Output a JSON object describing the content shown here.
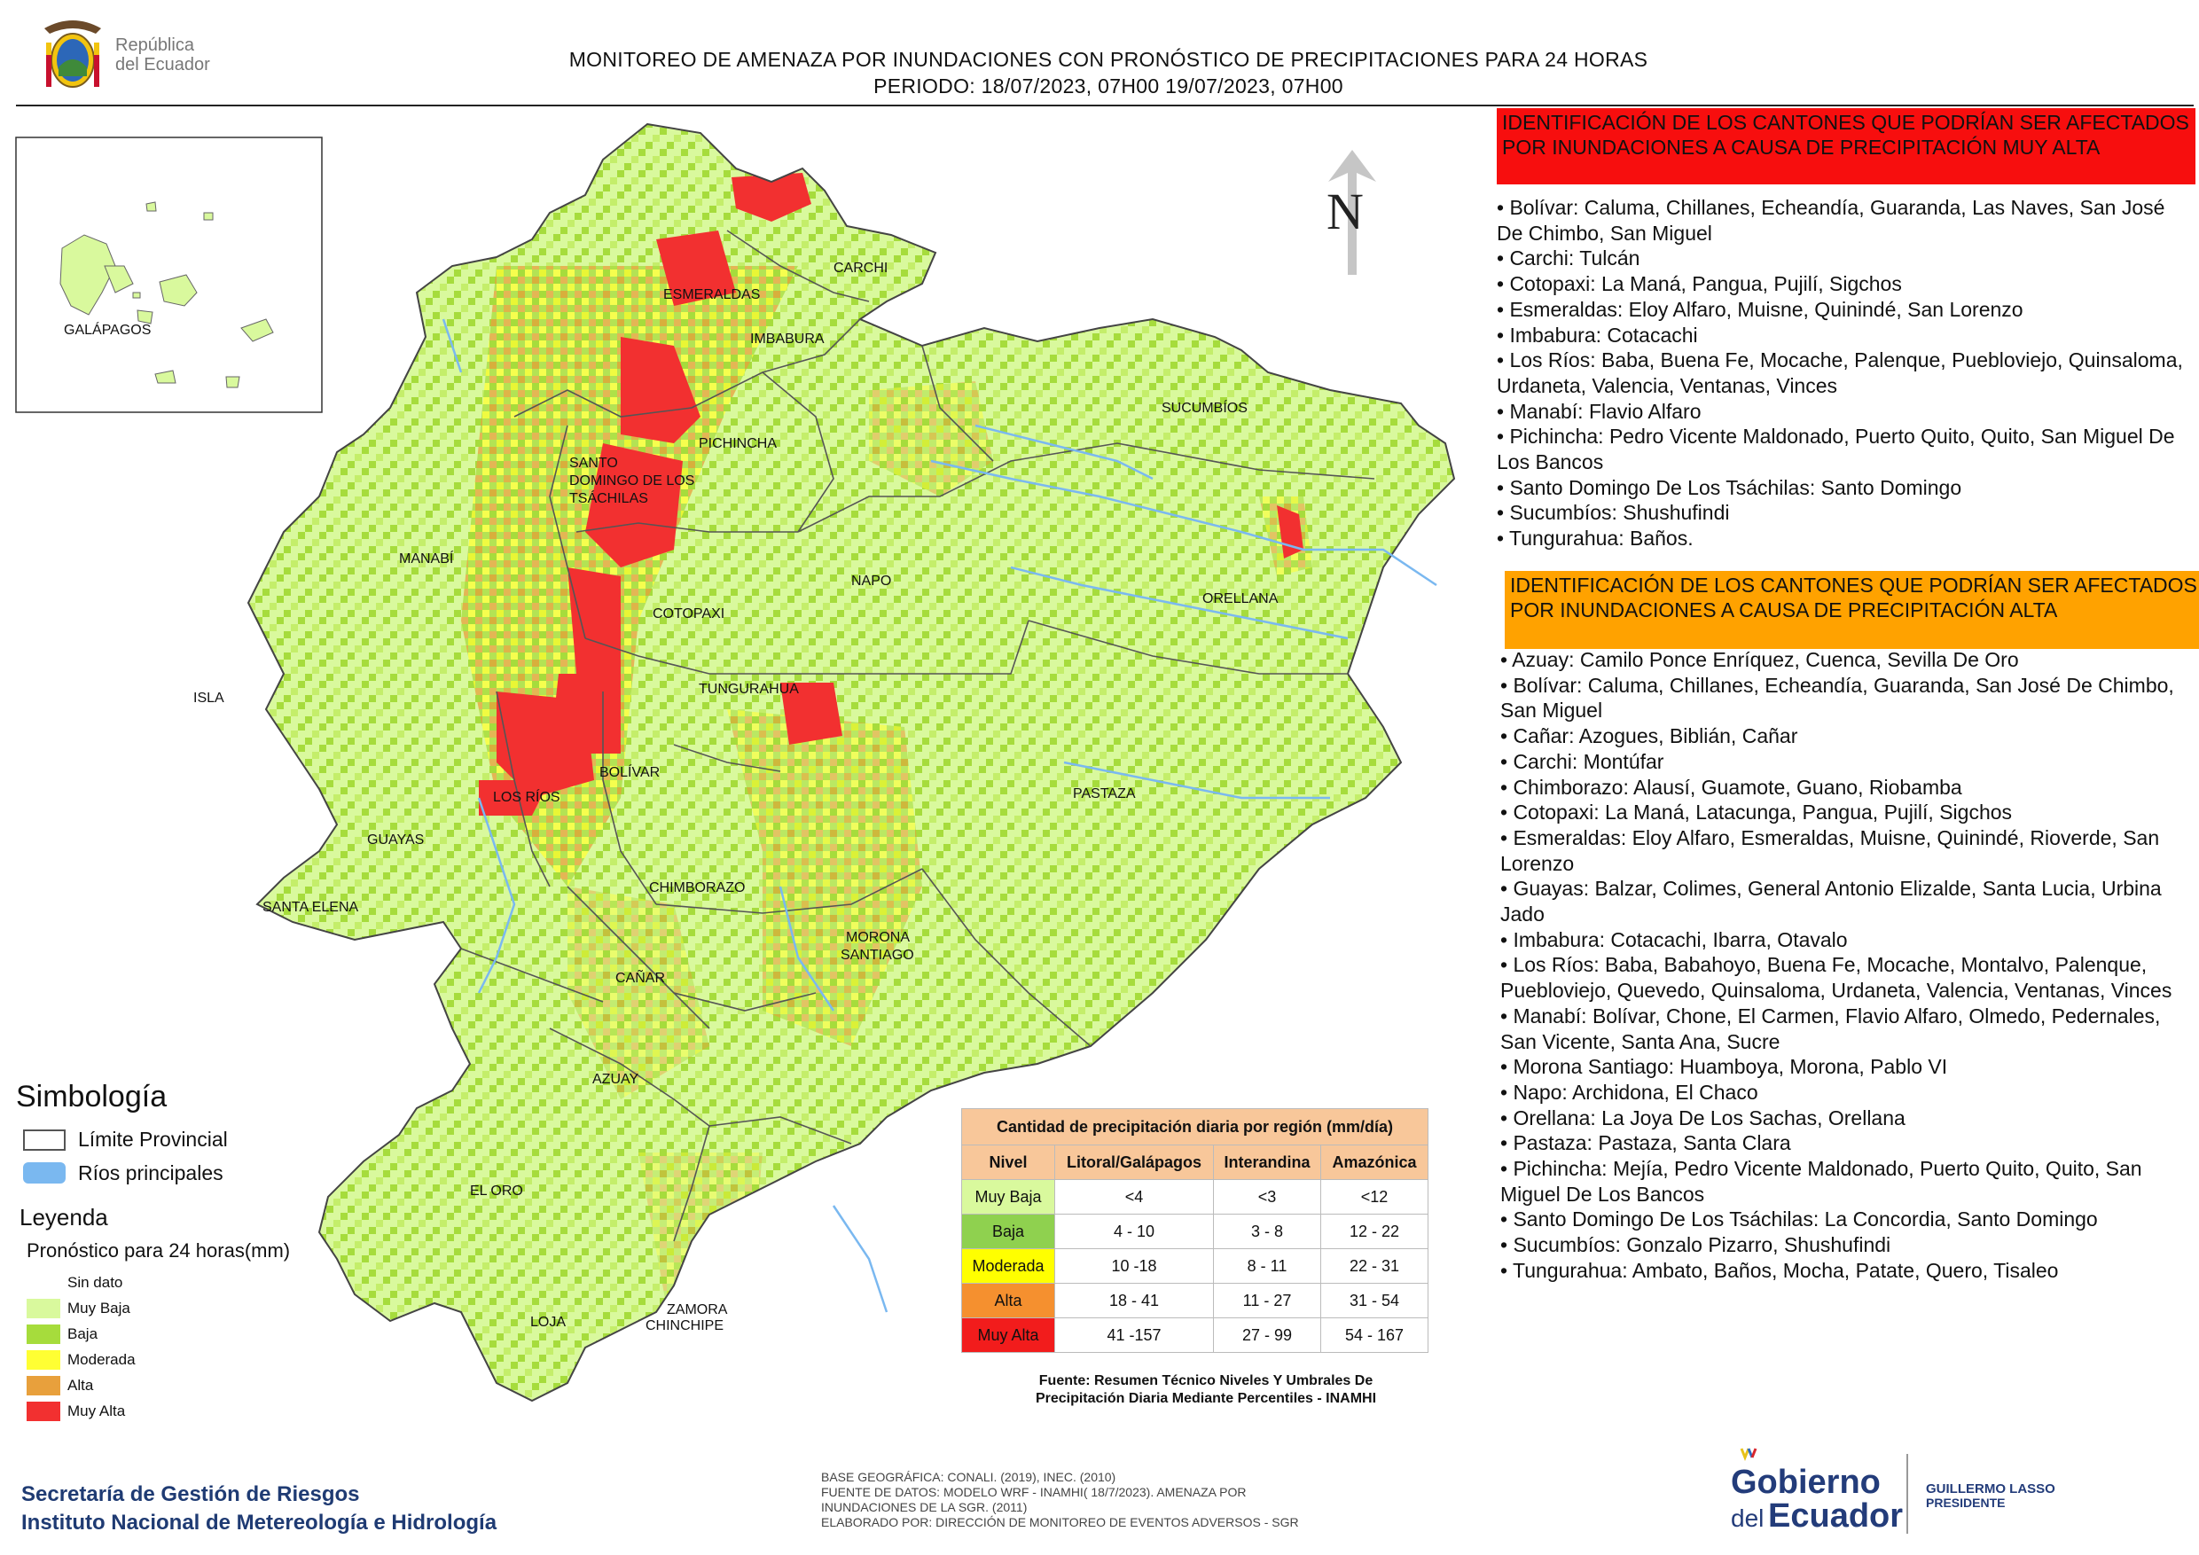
{
  "header": {
    "logo_text_line1": "República",
    "logo_text_line2": "del Ecuador",
    "title_line1": "MONITOREO DE AMENAZA POR INUNDACIONES  CON PRONÓSTICO DE  PRECIPITACIONES PARA 24 HORAS",
    "title_line2": "PERIODO: 18/07/2023, 07H00 19/07/2023, 07H00"
  },
  "map": {
    "north_label": "N",
    "inset_label": "GALÁPAGOS",
    "province_labels": {
      "carchi": "CARCHI",
      "esmeraldas": "ESMERALDAS",
      "imbabura": "IMBABURA",
      "pichincha": "PICHINCHA",
      "sucumbios": "SUCUMBÍOS",
      "santo_domingo_1": "SANTO",
      "santo_domingo_2": "DOMINGO DE LOS",
      "santo_domingo_3": "TSÁCHILAS",
      "manabi": "MANABÍ",
      "napo": "NAPO",
      "orellana": "ORELLANA",
      "cotopaxi": "COTOPAXI",
      "tungurahua": "TUNGURAHUA",
      "isla": "ISLA",
      "bolivar": "BOLÍVAR",
      "los_rios": "LOS RÍOS",
      "pastaza": "PASTAZA",
      "guayas": "GUAYAS",
      "santa_elena": "SANTA ELENA",
      "chimborazo": "CHIMBORAZO",
      "morona_1": "MORONA",
      "morona_2": "SANTIAGO",
      "canar": "CAÑAR",
      "azuay": "AZUAY",
      "el_oro": "EL ORO",
      "loja": "LOJA",
      "zamora_1": "ZAMORA",
      "zamora_2": "CHINCHIPE"
    },
    "colors": {
      "muy_baja": "#d9f99d",
      "baja": "#a6dc3c",
      "moderada": "#ffff33",
      "alta": "#e8a03c",
      "muy_alta": "#f23030",
      "rivers": "#7ab8f0"
    }
  },
  "muy_alta_panel": {
    "title": "IDENTIFICACIÓN DE LOS CANTONES QUE PODRÍAN SER AFECTADOS POR INUNDACIONES  A CAUSA DE PRECIPITACIÓN MUY ALTA",
    "items": [
      "• Bolívar: Caluma, Chillanes, Echeandía, Guaranda, Las Naves, San José De Chimbo, San Miguel",
      "• Carchi: Tulcán",
      "• Cotopaxi: La Maná, Pangua, Pujilí, Sigchos",
      "• Esmeraldas: Eloy Alfaro, Muisne, Quinindé, San Lorenzo",
      "• Imbabura: Cotacachi",
      "• Los Ríos: Baba, Buena Fe, Mocache, Palenque, Puebloviejo, Quinsaloma, Urdaneta, Valencia, Ventanas, Vinces",
      "• Manabí: Flavio Alfaro",
      "• Pichincha: Pedro Vicente Maldonado, Puerto Quito, Quito, San Miguel De Los Bancos",
      "• Santo Domingo De Los Tsáchilas: Santo Domingo",
      "• Sucumbíos: Shushufindi",
      "• Tungurahua: Baños."
    ]
  },
  "alta_panel": {
    "title": "IDENTIFICACIÓN DE LOS CANTONES QUE  PODRÍAN SER AFECTADOS POR INUNDACIONES  A CAUSA DE PRECIPITACIÓN ALTA",
    "items": [
      "• Azuay: Camilo Ponce Enríquez, Cuenca, Sevilla De Oro",
      "• Bolívar: Caluma, Chillanes, Echeandía, Guaranda, San José De Chimbo, San Miguel",
      "• Cañar: Azogues, Biblián, Cañar",
      "• Carchi: Montúfar",
      "• Chimborazo: Alausí, Guamote, Guano, Riobamba",
      "• Cotopaxi: La Maná, Latacunga, Pangua, Pujilí, Sigchos",
      "• Esmeraldas: Eloy Alfaro, Esmeraldas, Muisne, Quinindé, Rioverde, San Lorenzo",
      "• Guayas: Balzar, Colimes, General Antonio Elizalde, Santa Lucia, Urbina Jado",
      "• Imbabura: Cotacachi, Ibarra, Otavalo",
      "• Los Ríos: Baba, Babahoyo, Buena Fe, Mocache, Montalvo, Palenque, Puebloviejo, Quevedo, Quinsaloma, Urdaneta, Valencia, Ventanas, Vinces",
      "• Manabí: Bolívar, Chone, El Carmen, Flavio Alfaro, Olmedo, Pedernales, San Vicente, Santa Ana, Sucre",
      "• Morona Santiago: Huamboya, Morona, Pablo VI",
      "• Napo: Archidona, El Chaco",
      "• Orellana: La Joya De Los Sachas, Orellana",
      "• Pastaza: Pastaza, Santa Clara",
      "• Pichincha: Mejía, Pedro Vicente Maldonado, Puerto Quito, Quito, San Miguel De Los Bancos",
      "• Santo Domingo De Los Tsáchilas: La Concordia, Santo Domingo",
      "• Sucumbíos: Gonzalo Pizarro, Shushufindi",
      "• Tungurahua: Ambato, Baños, Mocha, Patate, Quero, Tisaleo"
    ]
  },
  "symbology": {
    "title": "Simbología",
    "limite": "Límite Provincial",
    "rios": "Ríos principales",
    "legend_title": "Leyenda",
    "legend_subtitle": "Pronóstico para 24 horas(mm)",
    "levels": [
      {
        "label": "Sin dato",
        "color": "#ffffff"
      },
      {
        "label": "Muy Baja",
        "color": "#d9f99d"
      },
      {
        "label": "Baja",
        "color": "#a6dc3c"
      },
      {
        "label": "Moderada",
        "color": "#ffff33"
      },
      {
        "label": "Alta",
        "color": "#e8a03c"
      },
      {
        "label": "Muy Alta",
        "color": "#f23030"
      }
    ]
  },
  "precip_table": {
    "title": "Cantidad de precipitación diaria por región (mm/día)",
    "headers": [
      "Nivel",
      "Litoral/Galápagos",
      "Interandina",
      "Amazónica"
    ],
    "rows": [
      {
        "nivel": "Muy Baja",
        "color": "#d9f99d",
        "litoral": "<4",
        "interandina": "<3",
        "amazonica": "<12"
      },
      {
        "nivel": "Baja",
        "color": "#8fd14f",
        "litoral": "4 - 10",
        "interandina": "3 - 8",
        "amazonica": "12 - 22"
      },
      {
        "nivel": "Moderada",
        "color": "#ffff00",
        "litoral": "10 -18",
        "interandina": "8 - 11",
        "amazonica": "22 - 31"
      },
      {
        "nivel": "Alta",
        "color": "#f5902f",
        "litoral": "18 - 41",
        "interandina": "11 - 27",
        "amazonica": "31 - 54"
      },
      {
        "nivel": "Muy Alta",
        "color": "#f21c1c",
        "litoral": "41 -157",
        "interandina": "27 - 99",
        "amazonica": "54 - 167"
      }
    ],
    "source_line1": "Fuente: Resumen Técnico Niveles Y Umbrales De",
    "source_line2": "Precipitación Diaria Mediante Percentiles - INAMHI"
  },
  "footer": {
    "left_line1": "Secretaría de Gestión de Riesgos",
    "left_line2": "Instituto Nacional de Metereología e Hidrología",
    "credit_line1": "BASE GEOGRÁFICA: CONALI. (2019), INEC. (2010)",
    "credit_line2": "FUENTE DE DATOS: MODELO WRF - INAMHI( 18/7/2023).  AMENAZA POR",
    "credit_line3": "INUNDACIONES DE LA SGR. (2011)",
    "credit_line4": "ELABORADO POR: DIRECCIÓN DE MONITOREO DE EVENTOS ADVERSOS - SGR",
    "gob_line1": "Gobierno",
    "gob_line2": "del",
    "gob_line3": "Ecuador",
    "president_line1": "GUILLERMO LASSO",
    "president_line2": "PRESIDENTE"
  }
}
